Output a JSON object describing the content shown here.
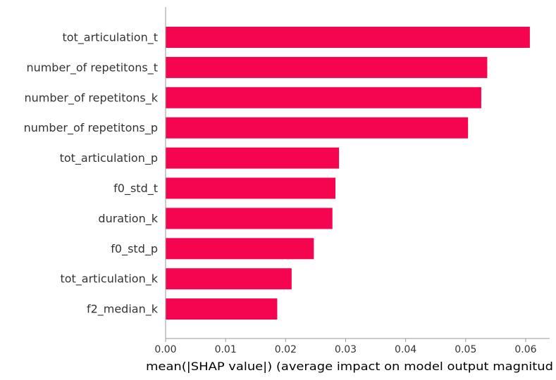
{
  "chart_data": {
    "type": "bar",
    "orientation": "horizontal",
    "title": "",
    "xlabel": "mean(|SHAP value|) (average impact on model output magnitud",
    "ylabel": "",
    "xlim": [
      0,
      0.064
    ],
    "grid": false,
    "bar_color": "#f5054f",
    "axis_color": "#999999",
    "text_color": "#333333",
    "categories": [
      "tot_articulation_t",
      "number_of repetitons_t",
      "number_of repetitons_k",
      "number_of repetitons_p",
      "tot_articulation_p",
      "f0_std_t",
      "duration_k",
      "f0_std_p",
      "tot_articulation_k",
      "f2_median_k"
    ],
    "values": [
      0.0607,
      0.0536,
      0.0526,
      0.0504,
      0.0289,
      0.0283,
      0.0278,
      0.0247,
      0.021,
      0.0186
    ],
    "xticks": [
      0.0,
      0.01,
      0.02,
      0.03,
      0.04,
      0.05,
      0.06
    ],
    "xtick_labels": [
      "0.00",
      "0.01",
      "0.02",
      "0.03",
      "0.04",
      "0.05",
      "0.06"
    ]
  }
}
